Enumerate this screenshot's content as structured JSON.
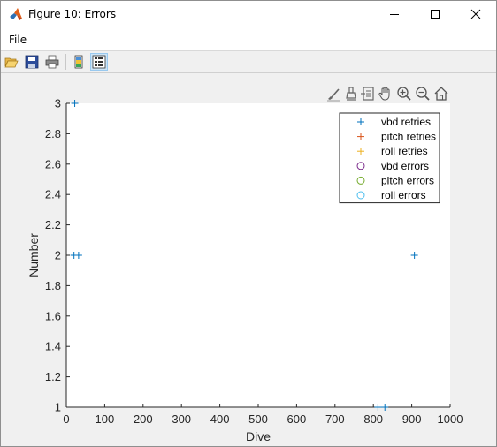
{
  "window": {
    "title": "Figure 10: Errors",
    "menu": {
      "file": "File"
    },
    "colors": {
      "titlebar": "#ffffff",
      "figure_bg": "#f0f0f0"
    }
  },
  "toolbar": {
    "buttons": [
      "open-file-icon",
      "save-icon",
      "print-icon",
      "link-plot-icon",
      "property-inspector-icon"
    ],
    "active": "property-inspector-icon"
  },
  "axes_toolbar": {
    "buttons": [
      "brush-icon",
      "data-tips-icon",
      "insert-legend-icon",
      "pan-icon",
      "zoom-in-icon",
      "zoom-out-icon",
      "home-icon"
    ]
  },
  "chart_data": {
    "type": "scatter",
    "xlabel": "Dive",
    "ylabel": "Number",
    "xlim": [
      0,
      1000
    ],
    "ylim": [
      1,
      3
    ],
    "xticks": [
      0,
      100,
      200,
      300,
      400,
      500,
      600,
      700,
      800,
      900,
      1000
    ],
    "yticks": [
      1,
      1.2,
      1.4,
      1.6,
      1.8,
      2,
      2.2,
      2.4,
      2.6,
      2.8,
      3
    ],
    "ytick_labels": [
      "1",
      "1.2",
      "1.4",
      "1.6",
      "1.8",
      "2",
      "2.2",
      "2.4",
      "2.6",
      "2.8",
      "3"
    ],
    "grid": false,
    "legend_position": "top-right",
    "series": [
      {
        "name": "vbd retries",
        "marker": "+",
        "color": "#0072bd",
        "points": [
          [
            22,
            3
          ],
          [
            20,
            2
          ],
          [
            32,
            2
          ],
          [
            907,
            2
          ],
          [
            812,
            1
          ],
          [
            830,
            1
          ]
        ]
      },
      {
        "name": "pitch retries",
        "marker": "+",
        "color": "#d95319",
        "points": []
      },
      {
        "name": "roll retries",
        "marker": "+",
        "color": "#edb120",
        "points": []
      },
      {
        "name": "vbd errors",
        "marker": "o",
        "color": "#7e2f8e",
        "points": []
      },
      {
        "name": "pitch errors",
        "marker": "o",
        "color": "#77ac30",
        "points": []
      },
      {
        "name": "roll errors",
        "marker": "o",
        "color": "#4dbeee",
        "points": []
      }
    ]
  }
}
